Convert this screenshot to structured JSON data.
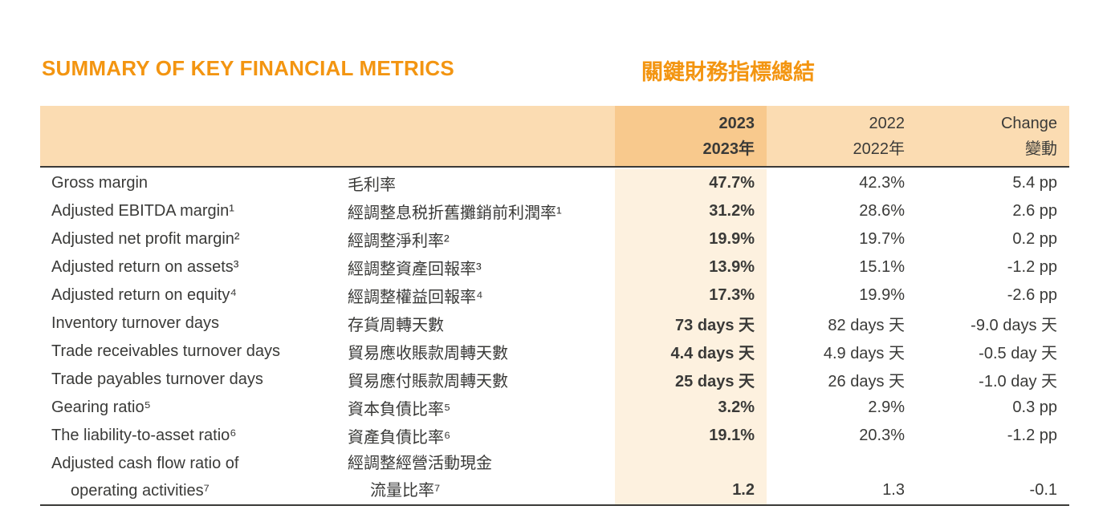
{
  "page": {
    "title_en": "SUMMARY OF KEY FINANCIAL METRICS",
    "title_zh": "關鍵財務指標總結",
    "accent_color": "#F39511",
    "header_bg": "#FBDCB2",
    "header_highlight_bg": "#F8C98D",
    "body_highlight_bg": "#FDF1DF",
    "text_color": "#3A3A38"
  },
  "table": {
    "header": {
      "y2023_en": "2023",
      "y2023_zh": "2023年",
      "y2022_en": "2022",
      "y2022_zh": "2022年",
      "change_en": "Change",
      "change_zh": "變動"
    },
    "rows": [
      {
        "en": "Gross margin",
        "zh": "毛利率",
        "y2023": "47.7%",
        "y2022": "42.3%",
        "change": "5.4 pp"
      },
      {
        "en": "Adjusted EBITDA margin¹",
        "zh": "經調整息税折舊攤銷前利潤率¹",
        "y2023": "31.2%",
        "y2022": "28.6%",
        "change": "2.6 pp"
      },
      {
        "en": "Adjusted net profit margin²",
        "zh": "經調整淨利率²",
        "y2023": "19.9%",
        "y2022": "19.7%",
        "change": "0.2 pp"
      },
      {
        "en": "Adjusted return on assets³",
        "zh": "經調整資產回報率³",
        "y2023": "13.9%",
        "y2022": "15.1%",
        "change": "-1.2 pp"
      },
      {
        "en": "Adjusted return on equity⁴",
        "zh": "經調整權益回報率⁴",
        "y2023": "17.3%",
        "y2022": "19.9%",
        "change": "-2.6 pp"
      },
      {
        "en": "Inventory turnover days",
        "zh": "存貨周轉天數",
        "y2023": "73 days 天",
        "y2022": "82 days 天",
        "change": "-9.0 days 天"
      },
      {
        "en": "Trade receivables turnover days",
        "zh": "貿易應收賬款周轉天數",
        "y2023": "4.4 days 天",
        "y2022": "4.9 days 天",
        "change": "-0.5 day 天"
      },
      {
        "en": "Trade payables turnover days",
        "zh": "貿易應付賬款周轉天數",
        "y2023": "25 days 天",
        "y2022": "26 days 天",
        "change": "-1.0 day 天"
      },
      {
        "en": "Gearing ratio⁵",
        "zh": "資本負債比率⁵",
        "y2023": "3.2%",
        "y2022": "2.9%",
        "change": "0.3 pp"
      },
      {
        "en": "The liability-to-asset ratio⁶",
        "zh": "資產負債比率⁶",
        "y2023": "19.1%",
        "y2022": "20.3%",
        "change": "-1.2 pp"
      }
    ],
    "tall_row": {
      "en1": "Adjusted cash flow ratio of",
      "en2": "operating activities⁷",
      "zh1": "經調整經營活動現金",
      "zh2": "流量比率⁷",
      "y2023": "1.2",
      "y2022": "1.3",
      "change": "-0.1"
    }
  }
}
